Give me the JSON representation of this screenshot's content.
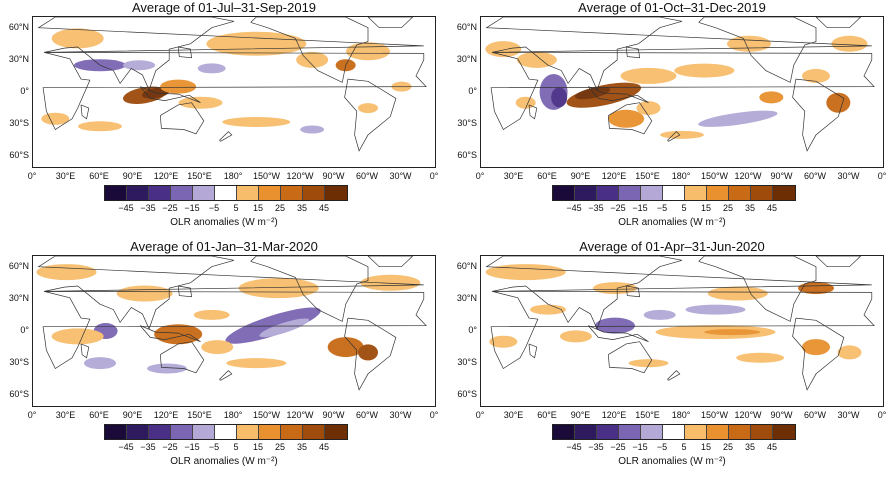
{
  "panels": [
    {
      "title": "Average of 01-Jul–31-Sep-2019"
    },
    {
      "title": "Average of 01-Oct–31-Dec-2019"
    },
    {
      "title": "Average of 01-Jan–31-Mar-2020"
    },
    {
      "title": "Average of 01-Apr–31-Jun-2020"
    }
  ],
  "axes": {
    "y_ticks": [
      "60°N",
      "30°N",
      "0°",
      "30°S",
      "60°S"
    ],
    "x_ticks": [
      "0°",
      "30°E",
      "60°E",
      "90°E",
      "120°E",
      "150°E",
      "180°",
      "150°W",
      "120°W",
      "90°W",
      "60°W",
      "30°W",
      "0°"
    ]
  },
  "colorbar": {
    "title": "OLR anomalies (W m⁻²)",
    "tick_labels": [
      "−45",
      "−35",
      "−25",
      "−15",
      "−5",
      "5",
      "15",
      "25",
      "35",
      "45"
    ],
    "colors": [
      "#1a0a3a",
      "#2e1a5e",
      "#4a2f86",
      "#7a66b3",
      "#b3a8d6",
      "#ffffff",
      "#f7bd6b",
      "#e8912e",
      "#c86a16",
      "#9e4b0c",
      "#6e2e04"
    ]
  }
}
